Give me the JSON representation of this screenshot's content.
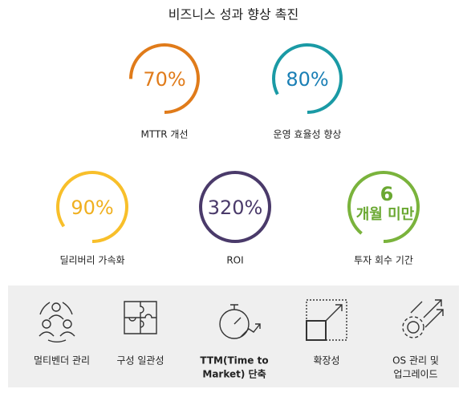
{
  "title": "비즈니스 성과 향상 촉진",
  "metrics": [
    {
      "value": "70%",
      "label": "MTTR 개선"
    },
    {
      "value": "80%",
      "label": "운영 효율성 향상"
    },
    {
      "value": "90%",
      "label": "딜리버리 가속화"
    },
    {
      "value": "320%",
      "label": "ROI"
    },
    {
      "value": "6",
      "unit": "개월 미만",
      "label": "투자 회수 기간"
    }
  ],
  "features": [
    {
      "lines": [
        "멀티벤더 관리"
      ]
    },
    {
      "lines": [
        "구성 일관성"
      ]
    },
    {
      "lines": [
        "TTM(Time to",
        "Market) 단축"
      ]
    },
    {
      "lines": [
        "확장성"
      ]
    },
    {
      "lines": [
        "OS 관리 및",
        "업그레이드"
      ]
    }
  ]
}
